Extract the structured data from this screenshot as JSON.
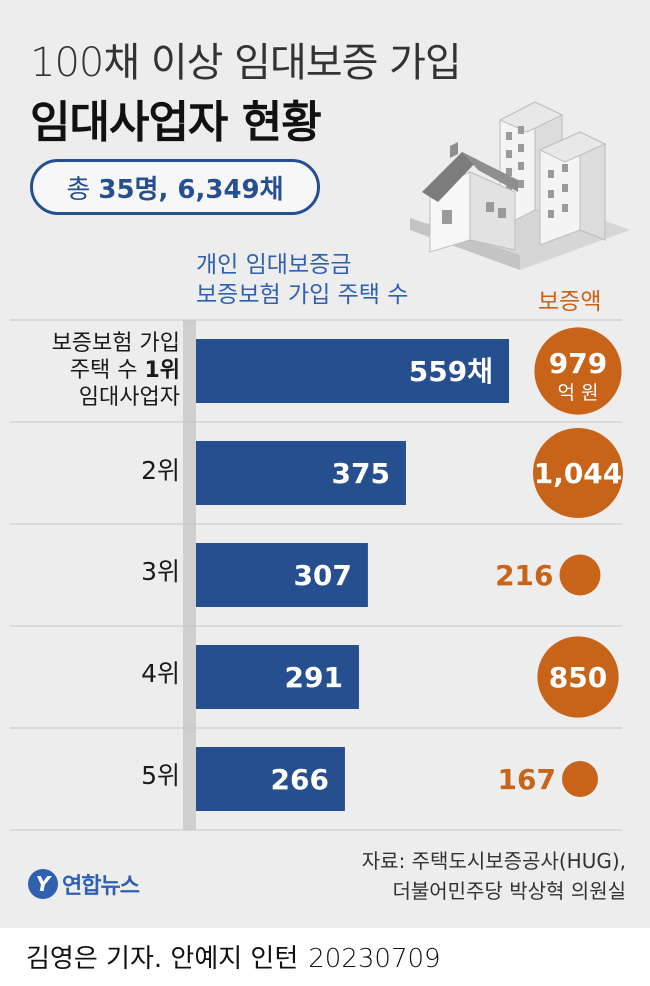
{
  "header": {
    "title_line1": "100채 이상 임대보증 가입",
    "title_line2": "임대사업자 현황",
    "total_prefix": "총",
    "total_value": "35명, 6,349채"
  },
  "columns": {
    "left_line1": "개인 임대보증금",
    "left_line2": "보증보험 가입 주택 수",
    "right": "보증액"
  },
  "rank1_label": {
    "line1": "보증보험 가입",
    "line2_pre": "주택 수 ",
    "line2_bold": "1위",
    "line3": "임대사업자"
  },
  "chart_data": {
    "type": "bar",
    "orientation": "horizontal",
    "categories": [
      "보증보험 가입 주택 수 1위 임대사업자",
      "2위",
      "3위",
      "4위",
      "5위"
    ],
    "bar_labels": [
      "559채",
      "375",
      "307",
      "291",
      "266"
    ],
    "circle_labels": [
      "979",
      "1,044",
      "216",
      "850",
      "167"
    ],
    "circle_sub_labels": [
      "억 원",
      "",
      "",
      "",
      ""
    ],
    "series": [
      {
        "name": "개인 임대보증금 보증보험 가입 주택 수",
        "values": [
          559,
          375,
          307,
          291,
          266
        ]
      },
      {
        "name": "보증액",
        "values": [
          979,
          1044,
          216,
          850,
          167
        ]
      }
    ],
    "colors": {
      "bar": "#264f8f",
      "circle": "#c8631a"
    },
    "grid": true
  },
  "footer": {
    "source_line1": "자료: 주택도시보증공사(HUG),",
    "source_line2": "더불어민주당 박상혁 의원실",
    "logo_mark": "Y",
    "logo_text": "연합뉴스",
    "credit": "김영은 기자. 안예지 인턴",
    "date": "20230709"
  }
}
